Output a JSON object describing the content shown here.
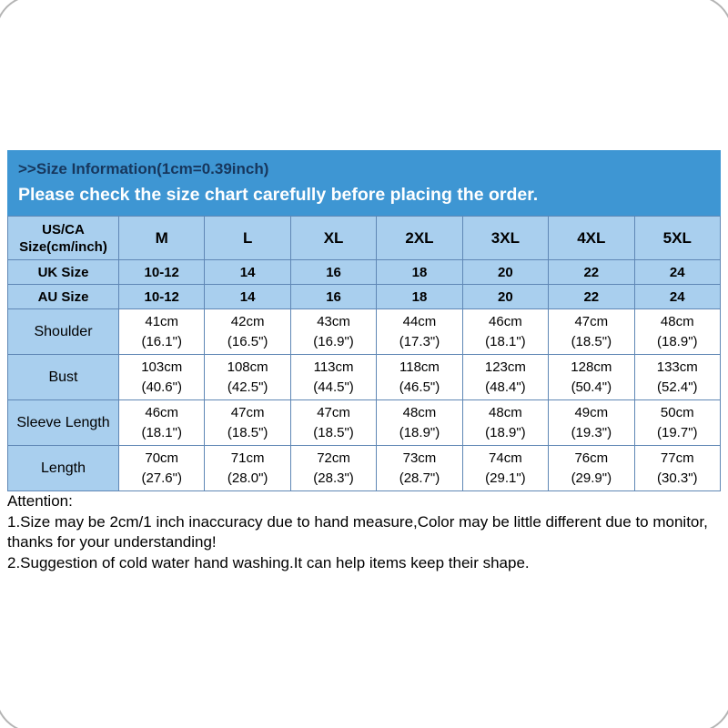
{
  "colors": {
    "banner_bg": "#3e96d3",
    "banner_title": "#17375d",
    "banner_subtitle": "#ffffff",
    "cell_bg": "#a9cfee",
    "border": "#5f87b5"
  },
  "banner": {
    "title": ">>Size Information(1cm=0.39inch)",
    "subtitle": "Please check the size chart carefully before placing the order."
  },
  "table": {
    "corner": "US/CA\nSize(cm/inch)",
    "sizes": [
      "M",
      "L",
      "XL",
      "2XL",
      "3XL",
      "4XL",
      "5XL"
    ],
    "rows": [
      {
        "label": "UK Size",
        "type": "size",
        "values": [
          "10-12",
          "14",
          "16",
          "18",
          "20",
          "22",
          "24"
        ]
      },
      {
        "label": "AU Size",
        "type": "size",
        "values": [
          "10-12",
          "14",
          "16",
          "18",
          "20",
          "22",
          "24"
        ]
      },
      {
        "label": "Shoulder",
        "type": "measure",
        "values": [
          "41cm\n(16.1\")",
          "42cm\n(16.5\")",
          "43cm\n(16.9\")",
          "44cm\n(17.3\")",
          "46cm\n(18.1\")",
          "47cm\n(18.5\")",
          "48cm\n(18.9\")"
        ]
      },
      {
        "label": "Bust",
        "type": "measure",
        "values": [
          "103cm\n(40.6\")",
          "108cm\n(42.5\")",
          "113cm\n(44.5\")",
          "118cm\n(46.5\")",
          "123cm\n(48.4\")",
          "128cm\n(50.4\")",
          "133cm\n(52.4\")"
        ]
      },
      {
        "label": "Sleeve Length",
        "type": "measure",
        "values": [
          "46cm\n(18.1\")",
          "47cm\n(18.5\")",
          "47cm\n(18.5\")",
          "48cm\n(18.9\")",
          "48cm\n(18.9\")",
          "49cm\n(19.3\")",
          "50cm\n(19.7\")"
        ]
      },
      {
        "label": "Length",
        "type": "measure",
        "values": [
          "70cm\n(27.6\")",
          "71cm\n(28.0\")",
          "72cm\n(28.3\")",
          "73cm\n(28.7\")",
          "74cm\n(29.1\")",
          "76cm\n(29.9\")",
          "77cm\n(30.3\")"
        ]
      }
    ]
  },
  "attention": {
    "title": "Attention:",
    "lines": [
      "1.Size may be 2cm/1 inch inaccuracy due to hand measure,Color may be little different due to monitor, thanks for your understanding!",
      "2.Suggestion of cold water hand washing.It can help items keep their shape."
    ]
  }
}
